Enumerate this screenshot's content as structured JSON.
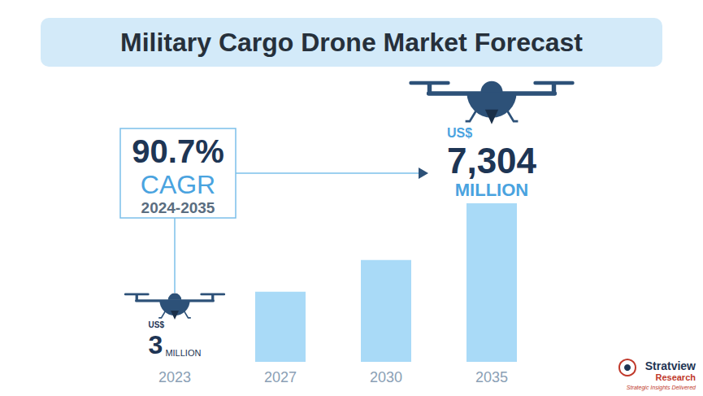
{
  "chart_data": {
    "type": "bar",
    "title": "Military Cargo Drone Market Forecast",
    "categories": [
      "2023",
      "2027",
      "2030",
      "2035"
    ],
    "values": [
      3,
      3230,
      4690,
      7304
    ],
    "value_labels": [
      "3",
      null,
      null,
      "7,304"
    ],
    "color": "#a9daf7",
    "grid": false,
    "tick_labels": "x",
    "annotations": {
      "currency": "US$",
      "unit": "MILLION",
      "cagr": {
        "label": "90.7%",
        "text": "CAGR",
        "period": "2024-2035"
      },
      "source": {
        "name": "Stratview",
        "sub": "Research",
        "tagline": "Strategic Insights Delivered"
      }
    }
  }
}
